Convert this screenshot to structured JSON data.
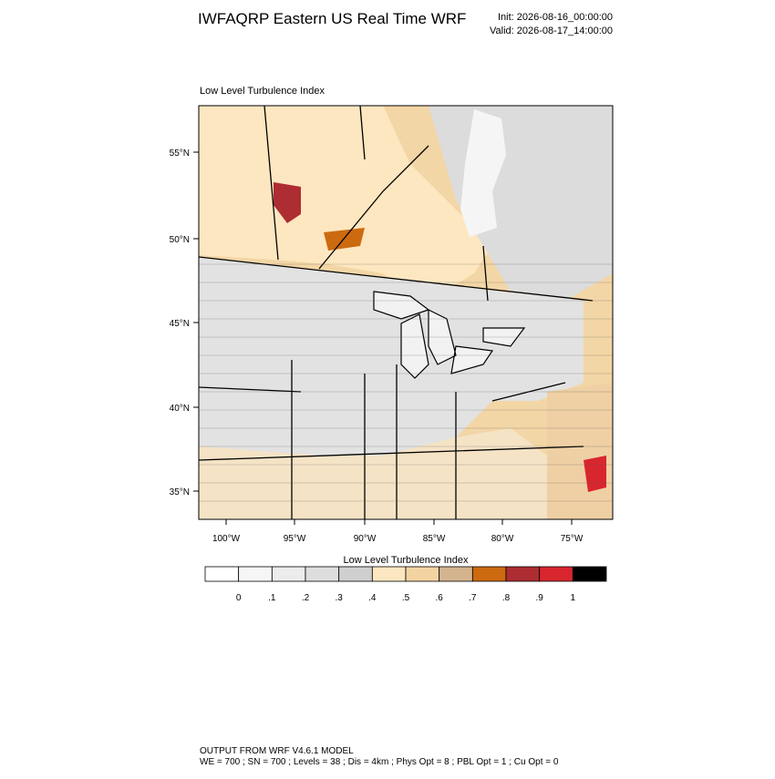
{
  "header": {
    "title": "IWFAQRP Eastern US Real Time WRF",
    "init": "Init: 2026-08-16_00:00:00",
    "valid": "Valid: 2026-08-17_14:00:00"
  },
  "map": {
    "title": "Low Level Turbulence Index",
    "lat_labels": [
      "55°N",
      "50°N",
      "45°N",
      "40°N",
      "35°N"
    ],
    "lon_labels": [
      "100°W",
      "95°W",
      "90°W",
      "85°W",
      "80°W",
      "75°W"
    ]
  },
  "colorbar": {
    "title": "Low Level Turbulence Index",
    "colors": [
      "#ffffff",
      "#f6f6f6",
      "#ececec",
      "#dedede",
      "#cfcfcf",
      "#fde7c0",
      "#f3d3a2",
      "#d3b48e",
      "#cc6a10",
      "#ad2d32",
      "#d8262e",
      "#000000"
    ],
    "labels": [
      "0",
      ".1",
      ".2",
      ".3",
      ".4",
      ".5",
      ".6",
      ".7",
      ".8",
      ".9",
      "1"
    ]
  },
  "footer": {
    "line1": "OUTPUT FROM WRF V4.6.1 MODEL",
    "line2": "WE = 700 ; SN = 700 ; Levels = 38 ; Dis = 4km ; Phys Opt = 8 ; PBL Opt = 1 ; Cu Opt = 0"
  }
}
